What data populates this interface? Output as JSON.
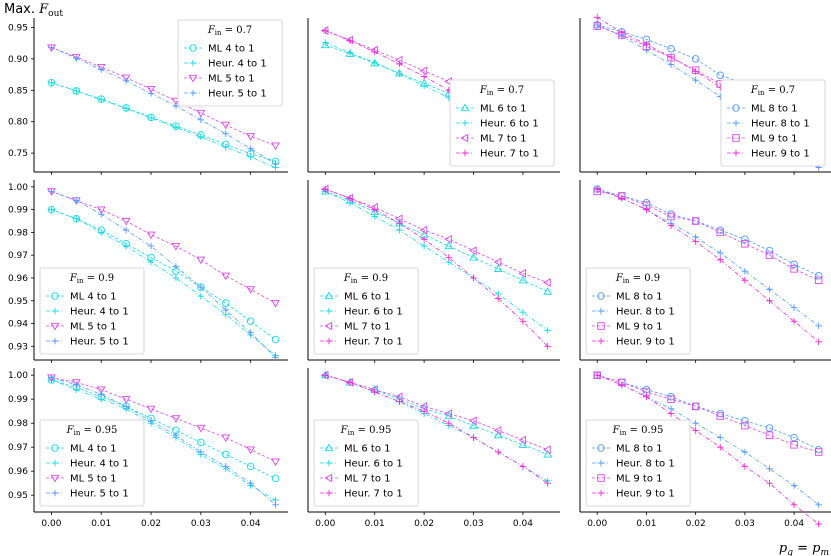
{
  "figure": {
    "ylabel": "Max. F_out",
    "xlabel": "p_g = p_m",
    "colors": {
      "cyan": "#17d8e6",
      "blue": "#4f9bff",
      "magenta": "#d94ae8",
      "pink": "#f02ad6"
    }
  },
  "chart_data": [
    {
      "type": "line",
      "row": 0,
      "col": 0,
      "legend_title": "F_in = 0.7",
      "legend_position": "top-right",
      "x": [
        0,
        0.005,
        0.01,
        0.015,
        0.02,
        0.025,
        0.03,
        0.035,
        0.04,
        0.045
      ],
      "xticks": [
        "0.00",
        "0.01",
        "0.02",
        "0.03",
        "0.04"
      ],
      "ylim": [
        0.72,
        0.965
      ],
      "yticks": [
        "0.75",
        "0.80",
        "0.85",
        "0.90",
        "0.95"
      ],
      "series": [
        {
          "name": "ML 4 to 1",
          "marker": "circle",
          "color": "cyan",
          "values": [
            0.862,
            0.849,
            0.836,
            0.822,
            0.807,
            0.793,
            0.779,
            0.764,
            0.749,
            0.737
          ]
        },
        {
          "name": "Heur. 4 to 1",
          "marker": "plus",
          "color": "cyan",
          "values": [
            0.862,
            0.849,
            0.835,
            0.821,
            0.806,
            0.791,
            0.776,
            0.76,
            0.744,
            0.727
          ]
        },
        {
          "name": "ML 5 to 1",
          "marker": "triangle-down",
          "color": "magenta",
          "values": [
            0.918,
            0.903,
            0.887,
            0.87,
            0.852,
            0.833,
            0.814,
            0.795,
            0.777,
            0.762
          ]
        },
        {
          "name": "Heur. 5 to 1",
          "marker": "plus",
          "color": "blue",
          "values": [
            0.918,
            0.901,
            0.883,
            0.865,
            0.845,
            0.825,
            0.803,
            0.781,
            0.757,
            0.733
          ]
        }
      ]
    },
    {
      "type": "line",
      "row": 0,
      "col": 1,
      "legend_title": "F_in = 0.7",
      "legend_position": "bottom-right",
      "x": [
        0,
        0.005,
        0.01,
        0.015,
        0.02,
        0.025,
        0.03,
        0.035,
        0.04,
        0.045
      ],
      "xticks": [
        "0.00",
        "0.01",
        "0.02",
        "0.03",
        "0.04"
      ],
      "ylim": [
        0.72,
        0.965
      ],
      "yticks": [],
      "series": [
        {
          "name": "ML 6 to 1",
          "marker": "triangle-up",
          "color": "cyan",
          "values": [
            0.922,
            0.908,
            0.893,
            0.877,
            0.861,
            0.845,
            0.828,
            0.812,
            0.796,
            0.782
          ]
        },
        {
          "name": "Heur. 6 to 1",
          "marker": "plus",
          "color": "cyan",
          "values": [
            0.926,
            0.91,
            0.894,
            0.876,
            0.857,
            0.838,
            0.817,
            0.796,
            0.773,
            0.749
          ]
        },
        {
          "name": "ML 7 to 1",
          "marker": "triangle-left",
          "color": "magenta",
          "values": [
            0.945,
            0.93,
            0.914,
            0.898,
            0.881,
            0.864,
            0.847,
            0.829,
            0.81,
            0.792
          ]
        },
        {
          "name": "Heur. 7 to 1",
          "marker": "plus",
          "color": "pink",
          "values": [
            0.945,
            0.929,
            0.911,
            0.892,
            0.872,
            0.85,
            0.827,
            0.802,
            0.775,
            0.742
          ]
        }
      ]
    },
    {
      "type": "line",
      "row": 0,
      "col": 2,
      "legend_title": "F_in = 0.7",
      "legend_position": "bottom-right",
      "x": [
        0,
        0.005,
        0.01,
        0.015,
        0.02,
        0.025,
        0.03,
        0.035,
        0.04,
        0.045
      ],
      "xticks": [
        "0.00",
        "0.01",
        "0.02",
        "0.03",
        "0.04"
      ],
      "ylim": [
        0.72,
        0.965
      ],
      "yticks": [],
      "series": [
        {
          "name": "ML 8 to 1",
          "marker": "circle",
          "color": "blue",
          "values": [
            0.954,
            0.943,
            0.931,
            0.916,
            0.9,
            0.874,
            0.86,
            0.845,
            0.822,
            0.806
          ]
        },
        {
          "name": "Heur. 8 to 1",
          "marker": "plus",
          "color": "blue",
          "values": [
            0.954,
            0.936,
            0.914,
            0.891,
            0.866,
            0.84,
            0.812,
            0.781,
            0.749,
            0.727
          ]
        },
        {
          "name": "ML 9 to 1",
          "marker": "square",
          "color": "magenta",
          "values": [
            0.952,
            0.938,
            0.92,
            0.902,
            0.882,
            0.86,
            0.851,
            0.84,
            0.812,
            0.802
          ]
        },
        {
          "name": "Heur. 9 to 1",
          "marker": "plus",
          "color": "pink",
          "values": [
            0.966,
            0.942,
            0.923,
            0.903,
            0.88,
            0.855,
            0.825,
            0.791,
            0.762,
            0.733
          ]
        }
      ]
    },
    {
      "type": "line",
      "row": 1,
      "col": 0,
      "legend_title": "F_in = 0.9",
      "legend_position": "bottom-left",
      "x": [
        0,
        0.005,
        0.01,
        0.015,
        0.02,
        0.025,
        0.03,
        0.035,
        0.04,
        0.045
      ],
      "xticks": [
        "0.00",
        "0.01",
        "0.02",
        "0.03",
        "0.04"
      ],
      "ylim": [
        0.924,
        1.003
      ],
      "yticks": [
        "0.93",
        "0.94",
        "0.95",
        "0.96",
        "0.97",
        "0.98",
        "0.99",
        "1.00"
      ],
      "series": [
        {
          "name": "ML 4 to 1",
          "marker": "circle",
          "color": "cyan",
          "values": [
            0.99,
            0.986,
            0.981,
            0.975,
            0.969,
            0.963,
            0.956,
            0.949,
            0.941,
            0.933
          ]
        },
        {
          "name": "Heur. 4 to 1",
          "marker": "plus",
          "color": "cyan",
          "values": [
            0.99,
            0.986,
            0.98,
            0.974,
            0.967,
            0.96,
            0.952,
            0.944,
            0.935,
            0.926
          ]
        },
        {
          "name": "ML 5 to 1",
          "marker": "triangle-down",
          "color": "magenta",
          "values": [
            0.998,
            0.994,
            0.99,
            0.985,
            0.979,
            0.974,
            0.968,
            0.961,
            0.955,
            0.949
          ]
        },
        {
          "name": "Heur. 5 to 1",
          "marker": "plus",
          "color": "blue",
          "values": [
            0.998,
            0.994,
            0.988,
            0.981,
            0.974,
            0.965,
            0.956,
            0.946,
            0.936,
            0.925
          ]
        }
      ]
    },
    {
      "type": "line",
      "row": 1,
      "col": 1,
      "legend_title": "F_in = 0.9",
      "legend_position": "bottom-left",
      "x": [
        0,
        0.005,
        0.01,
        0.015,
        0.02,
        0.025,
        0.03,
        0.035,
        0.04,
        0.045
      ],
      "xticks": [
        "0.00",
        "0.01",
        "0.02",
        "0.03",
        "0.04"
      ],
      "ylim": [
        0.924,
        1.003
      ],
      "yticks": [],
      "series": [
        {
          "name": "ML 6 to 1",
          "marker": "triangle-up",
          "color": "cyan",
          "values": [
            0.998,
            0.994,
            0.989,
            0.984,
            0.979,
            0.974,
            0.969,
            0.964,
            0.959,
            0.954
          ]
        },
        {
          "name": "Heur. 6 to 1",
          "marker": "plus",
          "color": "cyan",
          "values": [
            0.998,
            0.993,
            0.987,
            0.981,
            0.974,
            0.967,
            0.96,
            0.953,
            0.945,
            0.937
          ]
        },
        {
          "name": "ML 7 to 1",
          "marker": "triangle-left",
          "color": "magenta",
          "values": [
            0.999,
            0.995,
            0.991,
            0.986,
            0.981,
            0.977,
            0.972,
            0.967,
            0.962,
            0.958
          ]
        },
        {
          "name": "Heur. 7 to 1",
          "marker": "plus",
          "color": "pink",
          "values": [
            0.999,
            0.995,
            0.99,
            0.984,
            0.977,
            0.969,
            0.96,
            0.951,
            0.941,
            0.93
          ]
        }
      ]
    },
    {
      "type": "line",
      "row": 1,
      "col": 2,
      "legend_title": "F_in = 0.9",
      "legend_position": "bottom-left",
      "x": [
        0,
        0.005,
        0.01,
        0.015,
        0.02,
        0.025,
        0.03,
        0.035,
        0.04,
        0.045
      ],
      "xticks": [
        "0.00",
        "0.01",
        "0.02",
        "0.03",
        "0.04"
      ],
      "ylim": [
        0.924,
        1.003
      ],
      "yticks": [],
      "series": [
        {
          "name": "ML 8 to 1",
          "marker": "circle",
          "color": "blue",
          "values": [
            0.999,
            0.996,
            0.993,
            0.988,
            0.985,
            0.981,
            0.977,
            0.972,
            0.966,
            0.961
          ]
        },
        {
          "name": "Heur. 8 to 1",
          "marker": "plus",
          "color": "blue",
          "values": [
            0.999,
            0.995,
            0.99,
            0.984,
            0.978,
            0.971,
            0.963,
            0.955,
            0.947,
            0.939
          ]
        },
        {
          "name": "ML 9 to 1",
          "marker": "square",
          "color": "magenta",
          "values": [
            0.998,
            0.996,
            0.992,
            0.987,
            0.985,
            0.98,
            0.975,
            0.97,
            0.964,
            0.959
          ]
        },
        {
          "name": "Heur. 9 to 1",
          "marker": "plus",
          "color": "pink",
          "values": [
            0.999,
            0.995,
            0.99,
            0.983,
            0.976,
            0.968,
            0.959,
            0.95,
            0.941,
            0.932
          ]
        }
      ]
    },
    {
      "type": "line",
      "row": 2,
      "col": 0,
      "legend_title": "F_in = 0.95",
      "legend_position": "bottom-left",
      "x": [
        0,
        0.005,
        0.01,
        0.015,
        0.02,
        0.025,
        0.03,
        0.035,
        0.04,
        0.045
      ],
      "xticks": [
        "0.00",
        "0.01",
        "0.02",
        "0.03",
        "0.04"
      ],
      "ylim": [
        0.943,
        1.003
      ],
      "yticks": [
        "0.95",
        "0.96",
        "0.97",
        "0.98",
        "0.99",
        "1.00"
      ],
      "series": [
        {
          "name": "ML 4 to 1",
          "marker": "circle",
          "color": "cyan",
          "values": [
            0.998,
            0.995,
            0.991,
            0.987,
            0.982,
            0.977,
            0.972,
            0.967,
            0.962,
            0.957
          ]
        },
        {
          "name": "Heur. 4 to 1",
          "marker": "plus",
          "color": "cyan",
          "values": [
            0.998,
            0.994,
            0.99,
            0.986,
            0.98,
            0.974,
            0.967,
            0.961,
            0.954,
            0.948
          ]
        },
        {
          "name": "ML 5 to 1",
          "marker": "triangle-down",
          "color": "magenta",
          "values": [
            0.999,
            0.997,
            0.994,
            0.99,
            0.986,
            0.982,
            0.978,
            0.974,
            0.969,
            0.964
          ]
        },
        {
          "name": "Heur. 5 to 1",
          "marker": "plus",
          "color": "blue",
          "values": [
            0.999,
            0.996,
            0.992,
            0.987,
            0.981,
            0.975,
            0.968,
            0.962,
            0.955,
            0.946
          ]
        }
      ]
    },
    {
      "type": "line",
      "row": 2,
      "col": 1,
      "legend_title": "F_in = 0.95",
      "legend_position": "bottom-left",
      "x": [
        0,
        0.005,
        0.01,
        0.015,
        0.02,
        0.025,
        0.03,
        0.035,
        0.04,
        0.045
      ],
      "xticks": [
        "0.00",
        "0.01",
        "0.02",
        "0.03",
        "0.04"
      ],
      "ylim": [
        0.943,
        1.003
      ],
      "yticks": [],
      "series": [
        {
          "name": "ML 6 to 1",
          "marker": "triangle-up",
          "color": "cyan",
          "values": [
            1.0,
            0.997,
            0.994,
            0.99,
            0.986,
            0.983,
            0.979,
            0.975,
            0.971,
            0.967
          ]
        },
        {
          "name": "Heur. 6 to 1",
          "marker": "plus",
          "color": "cyan",
          "values": [
            1.0,
            0.997,
            0.993,
            0.989,
            0.984,
            0.979,
            0.974,
            0.968,
            0.962,
            0.956
          ]
        },
        {
          "name": "ML 7 to 1",
          "marker": "triangle-left",
          "color": "magenta",
          "values": [
            1.0,
            0.997,
            0.994,
            0.991,
            0.987,
            0.984,
            0.981,
            0.977,
            0.973,
            0.969
          ]
        },
        {
          "name": "Heur. 7 to 1",
          "marker": "plus",
          "color": "pink",
          "values": [
            1.0,
            0.997,
            0.993,
            0.989,
            0.985,
            0.98,
            0.974,
            0.968,
            0.962,
            0.955
          ]
        }
      ]
    },
    {
      "type": "line",
      "row": 2,
      "col": 2,
      "legend_title": "F_in = 0.95",
      "legend_position": "bottom-left",
      "x": [
        0,
        0.005,
        0.01,
        0.015,
        0.02,
        0.025,
        0.03,
        0.035,
        0.04,
        0.045
      ],
      "xticks": [
        "0.00",
        "0.01",
        "0.02",
        "0.03",
        "0.04"
      ],
      "ylim": [
        0.943,
        1.003
      ],
      "yticks": [],
      "series": [
        {
          "name": "ML 8 to 1",
          "marker": "circle",
          "color": "blue",
          "values": [
            1.0,
            0.997,
            0.994,
            0.991,
            0.987,
            0.984,
            0.981,
            0.978,
            0.974,
            0.969
          ]
        },
        {
          "name": "Heur. 8 to 1",
          "marker": "plus",
          "color": "blue",
          "values": [
            1.0,
            0.996,
            0.991,
            0.986,
            0.98,
            0.974,
            0.968,
            0.961,
            0.954,
            0.946
          ]
        },
        {
          "name": "ML 9 to 1",
          "marker": "square",
          "color": "magenta",
          "values": [
            1.0,
            0.997,
            0.993,
            0.99,
            0.987,
            0.983,
            0.979,
            0.975,
            0.971,
            0.968
          ]
        },
        {
          "name": "Heur. 9 to 1",
          "marker": "plus",
          "color": "pink",
          "values": [
            1.0,
            0.996,
            0.991,
            0.984,
            0.977,
            0.97,
            0.962,
            0.955,
            0.946,
            0.938
          ]
        }
      ]
    }
  ]
}
